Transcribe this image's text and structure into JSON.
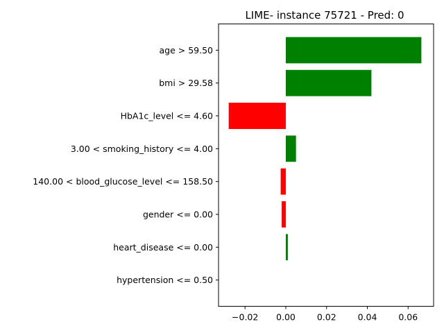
{
  "chart_data": {
    "type": "bar",
    "orientation": "horizontal",
    "title": "LIME- instance 75721 - Pred: 0",
    "xlabel": "",
    "ylabel": "",
    "categories": [
      "age > 59.50",
      "bmi > 29.58",
      "HbA1c_level <= 4.60",
      "3.00 < smoking_history <= 4.00",
      "140.00 < blood_glucose_level <= 158.50",
      "gender <= 0.00",
      "heart_disease <= 0.00",
      "hypertension <= 0.50"
    ],
    "values": [
      0.0665,
      0.042,
      -0.028,
      0.005,
      -0.0025,
      -0.002,
      0.001,
      0.0
    ],
    "xlim": [
      -0.033,
      0.0725
    ],
    "xticks": [
      -0.02,
      0.0,
      0.02,
      0.04,
      0.06
    ],
    "xtick_labels": [
      "−0.02",
      "0.00",
      "0.02",
      "0.04",
      "0.06"
    ],
    "grid": false,
    "colors": {
      "positive": "#008000",
      "negative": "#ff0000"
    }
  }
}
